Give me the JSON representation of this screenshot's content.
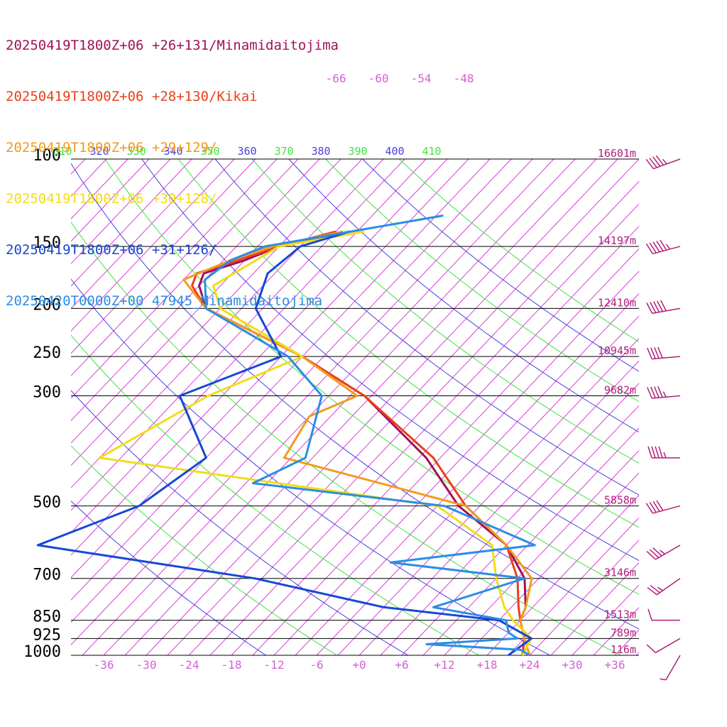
{
  "legend": [
    {
      "text": "20250419T1800Z+06 +26+131/Minamidaitojima",
      "color": "#a0105a"
    },
    {
      "text": "20250419T1800Z+06 +28+130/Kikai",
      "color": "#e8401a"
    },
    {
      "text": "20250419T1800Z+06 +29+129/",
      "color": "#f39a1e"
    },
    {
      "text": "20250419T1800Z+06 +30+128/",
      "color": "#f2dc1a"
    },
    {
      "text": "20250419T1800Z+06 +31+126/",
      "color": "#1548d6"
    },
    {
      "text": "20250420T0000Z+00 47945_Minamidaitojima",
      "color": "#2b8de6"
    }
  ],
  "chart_data": {
    "type": "line",
    "pressure_labels": [
      "100",
      "150",
      "200",
      "250",
      "300",
      "500",
      "700",
      "850",
      "925",
      "1000"
    ],
    "heights": [
      {
        "p": 100,
        "label": "16601m"
      },
      {
        "p": 150,
        "label": "14197m"
      },
      {
        "p": 200,
        "label": "12410m"
      },
      {
        "p": 250,
        "label": "10945m"
      },
      {
        "p": 300,
        "label": "9682m"
      },
      {
        "p": 500,
        "label": "5858m"
      },
      {
        "p": 700,
        "label": "3146m"
      },
      {
        "p": 850,
        "label": "1513m"
      },
      {
        "p": 925,
        "label": "789m"
      },
      {
        "p": 1000,
        "label": "116m"
      }
    ],
    "x_ticks": [
      "-36",
      "-30",
      "-24",
      "-18",
      "-12",
      "-6",
      "+0",
      "+6",
      "+12",
      "+18",
      "+24",
      "+30",
      "+36"
    ],
    "top_temp_labels": [
      "-66",
      "-60",
      "-54",
      "-48"
    ],
    "theta_labels": [
      {
        "text": "310",
        "color": "#3fe33f"
      },
      {
        "text": "320",
        "color": "#4a3fe0"
      },
      {
        "text": "330",
        "color": "#3fe33f"
      },
      {
        "text": "340",
        "color": "#4a3fe0"
      },
      {
        "text": "350",
        "color": "#3fe33f"
      },
      {
        "text": "360",
        "color": "#4a3fe0"
      },
      {
        "text": "370",
        "color": "#3fe33f"
      },
      {
        "text": "380",
        "color": "#4a3fe0"
      },
      {
        "text": "390",
        "color": "#3fe33f"
      },
      {
        "text": "400",
        "color": "#4a3fe0"
      },
      {
        "text": "410",
        "color": "#3fe33f"
      }
    ],
    "colors": {
      "isotherm": "#d63fd6",
      "theta_green": "#3fe33f",
      "theta_blue": "#4a3fe0",
      "isobar": "#000000",
      "height_label": "#b0207a",
      "wind_barb": "#b0207a"
    },
    "series": [
      {
        "color": "#a0105a",
        "temp": [
          [
            140,
            -58
          ],
          [
            150,
            -66
          ],
          [
            160,
            -69
          ],
          [
            170,
            -73
          ],
          [
            180,
            -72
          ],
          [
            200,
            -68
          ],
          [
            250,
            -48
          ],
          [
            300,
            -34
          ],
          [
            400,
            -17
          ],
          [
            500,
            -6
          ],
          [
            600,
            6
          ],
          [
            700,
            13
          ],
          [
            800,
            17
          ],
          [
            850,
            18
          ],
          [
            925,
            21
          ],
          [
            1000,
            23
          ]
        ]
      },
      {
        "color": "#e8401a",
        "temp": [
          [
            140,
            -60
          ],
          [
            150,
            -66
          ],
          [
            160,
            -70
          ],
          [
            170,
            -74
          ],
          [
            180,
            -73
          ],
          [
            200,
            -68
          ],
          [
            250,
            -48
          ],
          [
            300,
            -34
          ],
          [
            400,
            -16
          ],
          [
            500,
            -5
          ],
          [
            600,
            6
          ],
          [
            700,
            12
          ],
          [
            800,
            16
          ],
          [
            850,
            18
          ],
          [
            925,
            21
          ],
          [
            1000,
            23
          ]
        ]
      },
      {
        "color": "#f39a1e",
        "temp": [
          [
            140,
            -59
          ],
          [
            150,
            -67
          ],
          [
            160,
            -71
          ],
          [
            175,
            -75
          ],
          [
            200,
            -68
          ],
          [
            250,
            -48
          ],
          [
            300,
            -35
          ],
          [
            330,
            -39
          ],
          [
            400,
            -37
          ],
          [
            500,
            -5
          ],
          [
            600,
            6
          ],
          [
            700,
            14
          ],
          [
            800,
            17
          ],
          [
            850,
            18
          ],
          [
            925,
            21
          ],
          [
            1000,
            24
          ]
        ]
      },
      {
        "color": "#f2dc1a",
        "temp": [
          [
            140,
            -56
          ],
          [
            150,
            -66
          ],
          [
            180,
            -70
          ],
          [
            200,
            -66
          ],
          [
            250,
            -48
          ],
          [
            300,
            -56
          ],
          [
            400,
            -63
          ],
          [
            500,
            -9
          ],
          [
            600,
            4
          ],
          [
            700,
            9
          ],
          [
            800,
            14
          ],
          [
            850,
            17
          ],
          [
            925,
            22
          ],
          [
            1000,
            23
          ]
        ]
      },
      {
        "color": "#1548d6",
        "temp": [
          [
            140,
            -58
          ],
          [
            150,
            -63
          ],
          [
            170,
            -64
          ],
          [
            200,
            -61
          ],
          [
            250,
            -51
          ],
          [
            300,
            -60
          ],
          [
            400,
            -48
          ],
          [
            500,
            -51
          ],
          [
            600,
            -60
          ],
          [
            700,
            -25
          ],
          [
            800,
            -3
          ],
          [
            850,
            15
          ],
          [
            925,
            22
          ],
          [
            1000,
            21
          ]
        ]
      },
      {
        "color": "#2b8de6",
        "temp": [
          [
            130,
            -47
          ],
          [
            150,
            -68
          ],
          [
            160,
            -71
          ],
          [
            175,
            -72
          ],
          [
            200,
            -68
          ],
          [
            250,
            -50
          ],
          [
            300,
            -40
          ],
          [
            400,
            -34
          ],
          [
            450,
            -38
          ],
          [
            500,
            -8
          ],
          [
            600,
            10
          ],
          [
            650,
            -8
          ],
          [
            700,
            13
          ],
          [
            800,
            4
          ],
          [
            850,
            16
          ],
          [
            900,
            18
          ],
          [
            925,
            20
          ],
          [
            950,
            8
          ],
          [
            975,
            22
          ],
          [
            1000,
            24
          ]
        ]
      }
    ],
    "wind_barbs": [
      {
        "p": 100,
        "dir": 250,
        "spd": 45
      },
      {
        "p": 150,
        "dir": 255,
        "spd": 55
      },
      {
        "p": 200,
        "dir": 260,
        "spd": 50
      },
      {
        "p": 250,
        "dir": 265,
        "spd": 40
      },
      {
        "p": 300,
        "dir": 265,
        "spd": 45
      },
      {
        "p": 400,
        "dir": 270,
        "spd": 45
      },
      {
        "p": 500,
        "dir": 255,
        "spd": 40
      },
      {
        "p": 600,
        "dir": 240,
        "spd": 35
      },
      {
        "p": 700,
        "dir": 235,
        "spd": 25
      },
      {
        "p": 850,
        "dir": 270,
        "spd": 10
      },
      {
        "p": 925,
        "dir": 240,
        "spd": 10
      },
      {
        "p": 1000,
        "dir": 210,
        "spd": 5
      }
    ]
  }
}
